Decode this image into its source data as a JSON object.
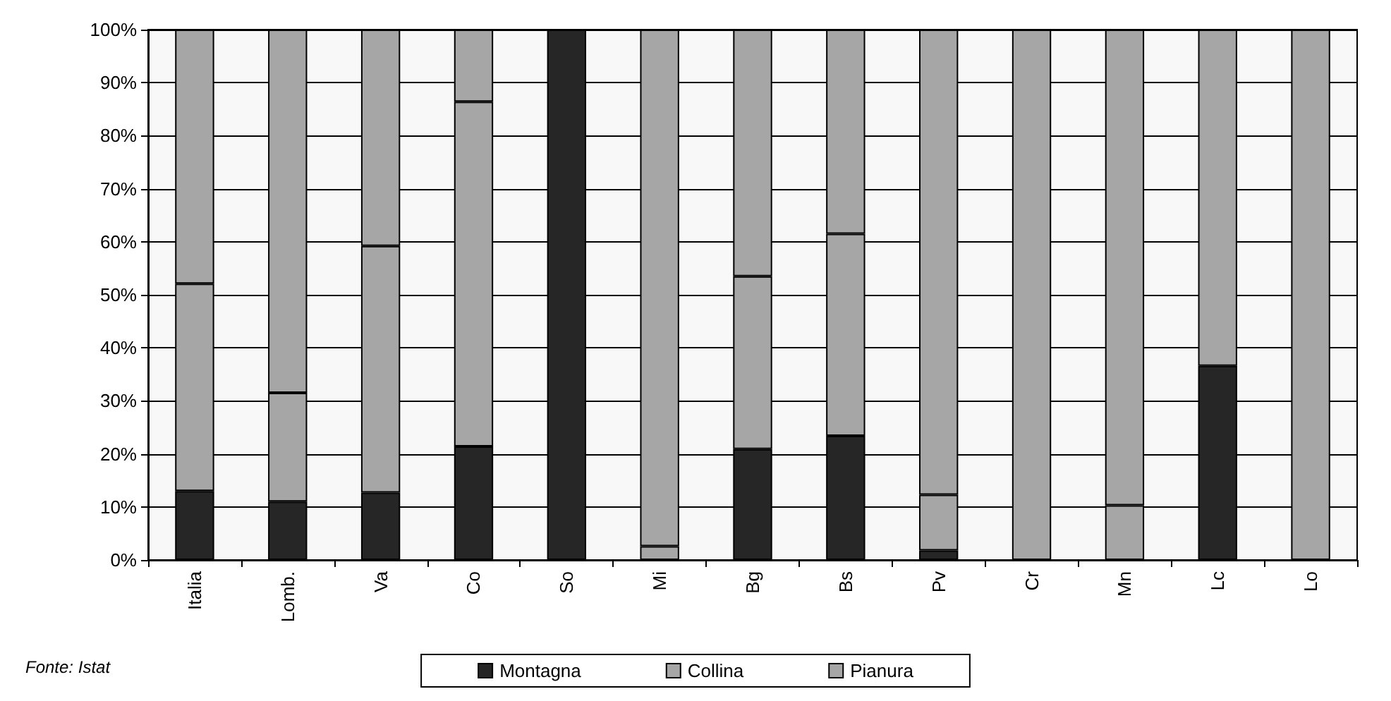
{
  "chart_data": {
    "type": "bar",
    "stacked": true,
    "categories": [
      "Italia",
      "Lomb.",
      "Va",
      "Co",
      "So",
      "Mi",
      "Bg",
      "Bs",
      "Pv",
      "Cr",
      "Mn",
      "Lc",
      "Lo"
    ],
    "series": [
      {
        "name": "Montagna",
        "color": "#262626",
        "values": [
          13,
          11,
          12.7,
          21.4,
          100,
          0,
          20.9,
          23.4,
          1.8,
          0,
          0,
          36.6,
          0
        ]
      },
      {
        "name": "Collina",
        "color": "#a6a6a6",
        "values": [
          39.1,
          20.5,
          46.5,
          65,
          0,
          2.6,
          32.6,
          38.1,
          10.5,
          0,
          10.3,
          63.4,
          0
        ]
      },
      {
        "name": "Pianura",
        "color": "#a6a6a6",
        "values": [
          47.9,
          68.5,
          40.8,
          13.6,
          0,
          97.4,
          46.5,
          38.5,
          87.7,
          100,
          89.7,
          0,
          100
        ]
      }
    ],
    "ylim": [
      0,
      100
    ],
    "yticks": [
      {
        "value": 0,
        "label": "0%"
      },
      {
        "value": 10,
        "label": "10%"
      },
      {
        "value": 20,
        "label": "20%"
      },
      {
        "value": 30,
        "label": "30%"
      },
      {
        "value": 40,
        "label": "40%"
      },
      {
        "value": 50,
        "label": "50%"
      },
      {
        "value": 60,
        "label": "60%"
      },
      {
        "value": 70,
        "label": "70%"
      },
      {
        "value": 80,
        "label": "80%"
      },
      {
        "value": 90,
        "label": "90%"
      },
      {
        "value": 100,
        "label": "100%"
      }
    ],
    "grid": "y",
    "legend": "bottom",
    "annotations": [
      "Fonte: Istat"
    ]
  }
}
